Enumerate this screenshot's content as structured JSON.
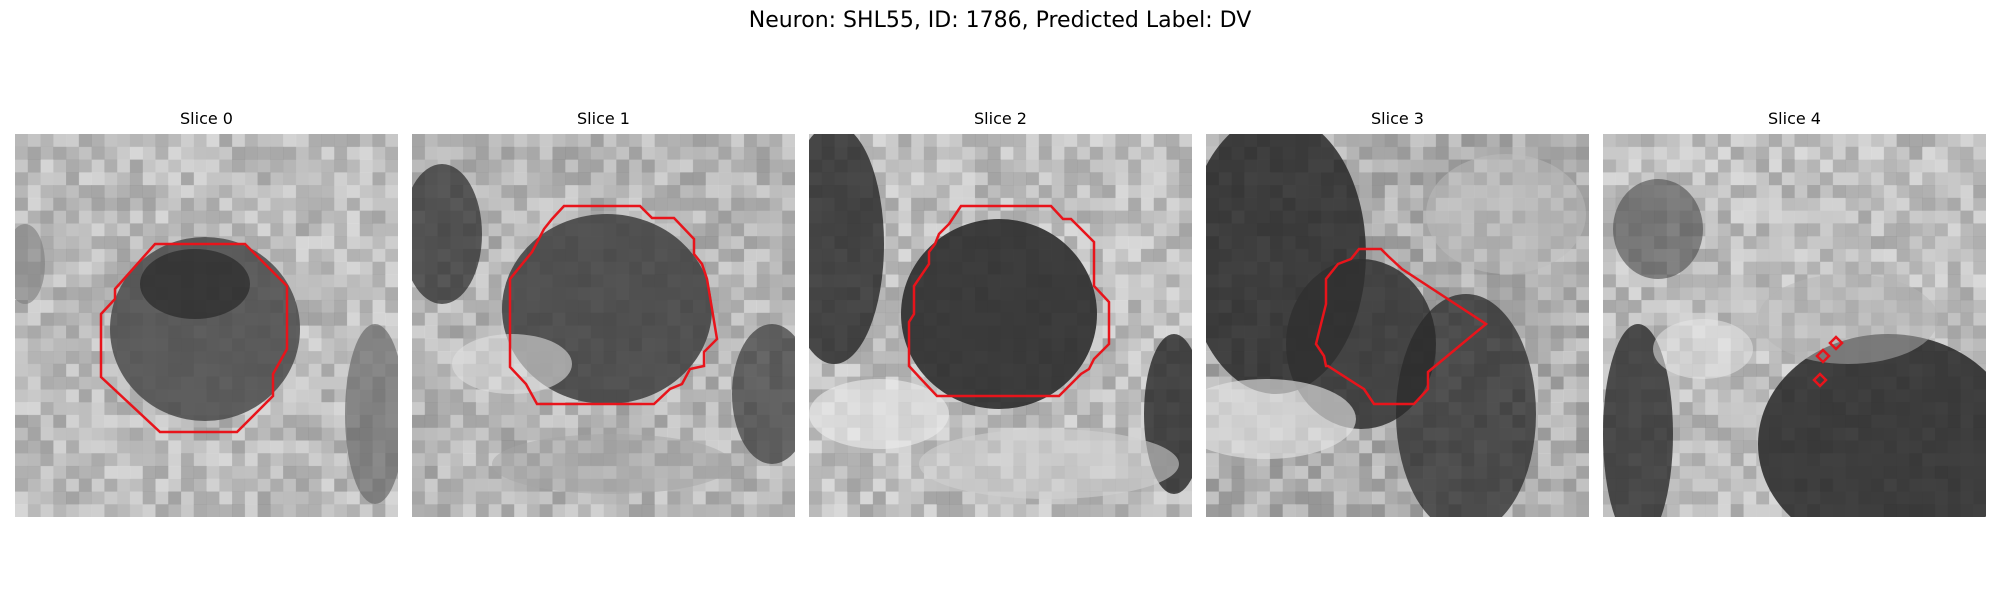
{
  "figure": {
    "title": "Neuron: SHL55, ID: 1786, Predicted Label: DV",
    "contour_color": "#e8141b"
  },
  "slices": [
    {
      "label": "Slice 0"
    },
    {
      "label": "Slice 1"
    },
    {
      "label": "Slice 2"
    },
    {
      "label": "Slice 3"
    },
    {
      "label": "Slice 4"
    }
  ]
}
